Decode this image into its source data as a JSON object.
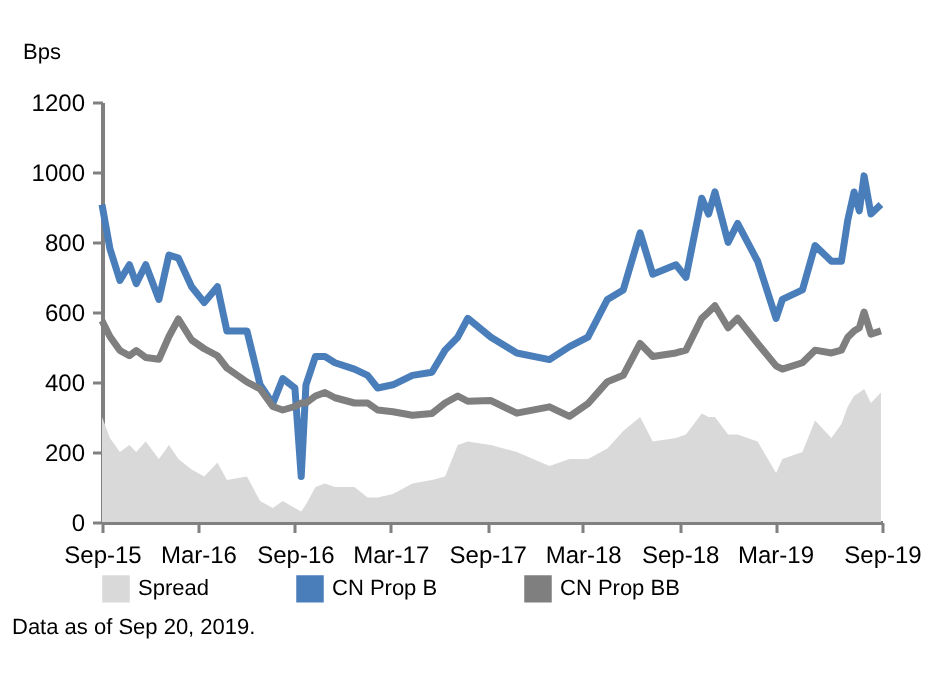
{
  "chart_data": {
    "type": "line",
    "ylabel": "Bps",
    "annotations": [
      "Data as of Sep 20, 2019."
    ],
    "x": [
      "2015-09-01",
      "2015-09-16",
      "2015-10-05",
      "2015-10-23",
      "2015-11-05",
      "2015-11-23",
      "2015-12-18",
      "2016-01-06",
      "2016-01-24",
      "2016-02-18",
      "2016-03-13",
      "2016-04-07",
      "2016-04-25",
      "2016-06-02",
      "2016-06-27",
      "2016-07-21",
      "2016-08-09",
      "2016-09-01",
      "2016-09-13",
      "2016-09-22",
      "2016-10-10",
      "2016-10-28",
      "2016-11-16",
      "2016-12-23",
      "2017-01-17",
      "2017-02-05",
      "2017-03-06",
      "2017-04-12",
      "2017-05-19",
      "2017-06-13",
      "2017-07-07",
      "2017-07-26",
      "2017-09-08",
      "2017-10-27",
      "2017-12-28",
      "2018-02-04",
      "2018-03-11",
      "2018-04-17",
      "2018-05-17",
      "2018-06-18",
      "2018-07-12",
      "2018-08-25",
      "2018-09-13",
      "2018-10-13",
      "2018-10-26",
      "2018-11-07",
      "2018-12-02",
      "2018-12-20",
      "2019-01-27",
      "2019-03-03",
      "2019-03-15",
      "2019-04-22",
      "2019-05-16",
      "2019-06-16",
      "2019-07-05",
      "2019-07-17",
      "2019-07-29",
      "2019-08-08",
      "2019-08-17",
      "2019-08-30",
      "2019-09-18"
    ],
    "series": [
      {
        "name": "Spread",
        "type": "area",
        "color": "#d9d9d9",
        "values": [
          300,
          240,
          200,
          220,
          200,
          230,
          180,
          220,
          180,
          150,
          130,
          170,
          120,
          130,
          60,
          40,
          60,
          40,
          30,
          50,
          100,
          110,
          100,
          100,
          70,
          70,
          80,
          110,
          120,
          130,
          220,
          230,
          220,
          200,
          160,
          180,
          180,
          210,
          260,
          300,
          230,
          240,
          250,
          310,
          300,
          300,
          250,
          250,
          230,
          140,
          180,
          200,
          290,
          240,
          280,
          330,
          360,
          370,
          380,
          340,
          370
        ]
      },
      {
        "name": "CN Prop B",
        "color": "#4a7ebb",
        "values": [
          907,
          781,
          690,
          735,
          681,
          735,
          636,
          763,
          754,
          672,
          627,
          672,
          546,
          546,
          392,
          338,
          410,
          383,
          130,
          392,
          473,
          473,
          455,
          437,
          419,
          383,
          392,
          419,
          428,
          491,
          528,
          582,
          528,
          483,
          464,
          501,
          528,
          636,
          663,
          826,
          708,
          735,
          699,
          925,
          880,
          943,
          799,
          853,
          745,
          582,
          636,
          663,
          790,
          745,
          745,
          862,
          943,
          889,
          989,
          880,
          907
        ]
      },
      {
        "name": "CN Prop BB",
        "color": "#7f7f7f",
        "values": [
          575,
          530,
          490,
          475,
          490,
          470,
          465,
          530,
          580,
          520,
          495,
          475,
          440,
          400,
          380,
          330,
          320,
          330,
          340,
          340,
          360,
          370,
          355,
          340,
          340,
          320,
          315,
          305,
          310,
          340,
          360,
          345,
          347,
          311,
          329,
          302,
          338,
          401,
          419,
          510,
          473,
          483,
          491,
          582,
          600,
          618,
          555,
          582,
          510,
          446,
          437,
          455,
          491,
          483,
          491,
          528,
          546,
          555,
          600,
          537,
          546
        ]
      }
    ],
    "xlim": [
      "2015-09-01",
      "2019-09-20"
    ],
    "xticks": [
      {
        "value": "2015-09-01",
        "label": "Sep-15"
      },
      {
        "value": "2016-03-01",
        "label": "Mar-16"
      },
      {
        "value": "2016-09-01",
        "label": "Sep-16"
      },
      {
        "value": "2017-03-01",
        "label": "Mar-17"
      },
      {
        "value": "2017-09-01",
        "label": "Sep-17"
      },
      {
        "value": "2018-03-01",
        "label": "Mar-18"
      },
      {
        "value": "2018-09-01",
        "label": "Sep-18"
      },
      {
        "value": "2019-03-01",
        "label": "Mar-19"
      },
      {
        "value": "2019-09-20",
        "label": "Sep-19"
      }
    ],
    "ylim": [
      0,
      1200
    ],
    "yticks": [
      0,
      200,
      400,
      600,
      800,
      1000,
      1200
    ],
    "grid": false,
    "legend": "bottom",
    "line_style": "solid",
    "marker": "none"
  }
}
